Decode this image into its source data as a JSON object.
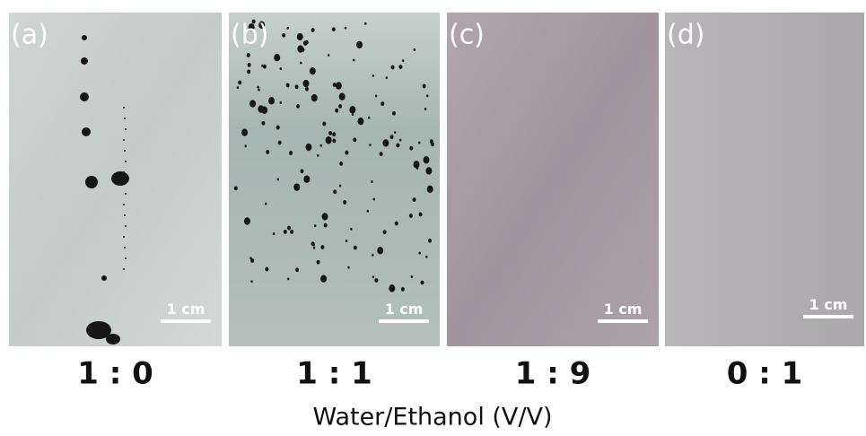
{
  "panels": [
    {
      "label": "(a)",
      "scale_bar": "1 cm",
      "ratio": "1 : 0"
    },
    {
      "label": "(b)",
      "scale_bar": "1 cm",
      "ratio": "1 : 1"
    },
    {
      "label": "(c)",
      "scale_bar": "1 cm",
      "ratio": "1 : 9"
    },
    {
      "label": "(d)",
      "scale_bar": "1 cm",
      "ratio": "0 : 1"
    }
  ],
  "caption": "Water/Ethanol (V/V)"
}
